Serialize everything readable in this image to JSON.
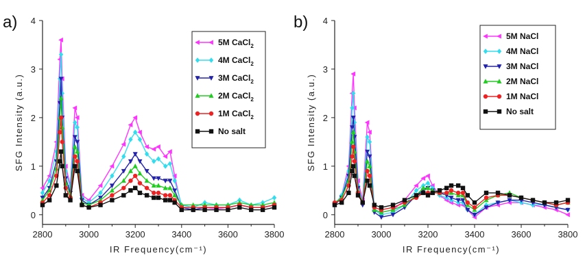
{
  "figure": {
    "panels": [
      "a)",
      "b)"
    ]
  },
  "chart_data": [
    {
      "type": "line",
      "panel_label": "a)",
      "xlabel": "IR Frequency(cm⁻¹)",
      "ylabel": "SFG Intensity (a.u.)",
      "xlim": [
        2800,
        3800
      ],
      "ylim": [
        -0.2,
        4
      ],
      "xticks": [
        2800,
        3000,
        3200,
        3400,
        3600,
        3800
      ],
      "yticks": [
        0,
        1,
        2,
        3,
        4
      ],
      "grid": false,
      "legend_position": "top-right",
      "x": [
        2800,
        2830,
        2860,
        2875,
        2880,
        2885,
        2900,
        2920,
        2940,
        2950,
        2970,
        3000,
        3050,
        3100,
        3150,
        3180,
        3200,
        3220,
        3250,
        3280,
        3300,
        3330,
        3350,
        3370,
        3400,
        3450,
        3500,
        3550,
        3600,
        3650,
        3700,
        3750,
        3800
      ],
      "series": [
        {
          "name": "5M CaCl2",
          "name_main": "5M CaCl",
          "name_sub": "2",
          "color": "#ff33ff",
          "marker": "triangle-left",
          "values": [
            0.55,
            0.8,
            1.5,
            3.2,
            3.6,
            2.8,
            1.0,
            0.6,
            2.2,
            2.0,
            0.4,
            0.3,
            0.6,
            1.0,
            1.45,
            1.85,
            2.0,
            1.7,
            1.4,
            1.35,
            1.4,
            1.2,
            1.3,
            0.8,
            0.15,
            0.1,
            0.15,
            0.12,
            0.15,
            0.2,
            0.15,
            0.15,
            0.2
          ]
        },
        {
          "name": "4M CaCl2",
          "name_main": "4M CaCl",
          "name_sub": "2",
          "color": "#33ddee",
          "marker": "diamond",
          "values": [
            0.45,
            0.7,
            1.3,
            2.8,
            3.3,
            2.5,
            0.9,
            0.55,
            1.9,
            1.8,
            0.35,
            0.25,
            0.45,
            0.8,
            1.2,
            1.55,
            1.7,
            1.55,
            1.25,
            1.1,
            1.15,
            1.0,
            1.05,
            0.7,
            0.2,
            0.15,
            0.25,
            0.2,
            0.2,
            0.3,
            0.2,
            0.25,
            0.35
          ]
        },
        {
          "name": "3M CaCl2",
          "name_main": "3M CaCl",
          "name_sub": "2",
          "color": "#2222aa",
          "marker": "triangle-down",
          "values": [
            0.35,
            0.55,
            1.1,
            2.3,
            2.8,
            2.0,
            0.75,
            0.45,
            1.6,
            1.5,
            0.3,
            0.2,
            0.35,
            0.6,
            0.9,
            1.1,
            1.25,
            1.1,
            0.9,
            0.75,
            0.75,
            0.7,
            0.7,
            0.5,
            0.15,
            0.1,
            0.15,
            0.15,
            0.15,
            0.2,
            0.15,
            0.15,
            0.2
          ]
        },
        {
          "name": "2M CaCl2",
          "name_main": "2M CaCl",
          "name_sub": "2",
          "color": "#22cc22",
          "marker": "triangle-up",
          "values": [
            0.3,
            0.5,
            0.95,
            2.0,
            2.4,
            1.8,
            0.65,
            0.4,
            1.4,
            1.3,
            0.25,
            0.2,
            0.3,
            0.5,
            0.7,
            0.9,
            1.0,
            0.85,
            0.7,
            0.6,
            0.6,
            0.55,
            0.55,
            0.4,
            0.2,
            0.2,
            0.2,
            0.2,
            0.2,
            0.25,
            0.2,
            0.2,
            0.25
          ]
        },
        {
          "name": "1M CaCl2",
          "name_main": "1M CaCl",
          "name_sub": "2",
          "color": "#ee2222",
          "marker": "circle",
          "values": [
            0.25,
            0.4,
            0.8,
            1.7,
            2.0,
            1.5,
            0.55,
            0.35,
            1.2,
            1.1,
            0.2,
            0.15,
            0.25,
            0.4,
            0.55,
            0.7,
            0.8,
            0.65,
            0.55,
            0.45,
            0.45,
            0.4,
            0.4,
            0.3,
            0.15,
            0.15,
            0.15,
            0.15,
            0.15,
            0.2,
            0.15,
            0.15,
            0.2
          ]
        },
        {
          "name": "No salt",
          "name_main": "No salt",
          "name_sub": "",
          "color": "#111111",
          "marker": "square",
          "values": [
            0.2,
            0.3,
            0.6,
            1.1,
            1.3,
            1.0,
            0.4,
            0.3,
            1.0,
            0.9,
            0.2,
            0.15,
            0.2,
            0.3,
            0.4,
            0.5,
            0.55,
            0.45,
            0.4,
            0.35,
            0.35,
            0.3,
            0.3,
            0.25,
            0.1,
            0.1,
            0.1,
            0.1,
            0.1,
            0.15,
            0.1,
            0.1,
            0.15
          ]
        }
      ]
    },
    {
      "type": "line",
      "panel_label": "b)",
      "xlabel": "IR Frequency(cm⁻¹)",
      "ylabel": "SFG Intensity (a.u.)",
      "xlim": [
        2800,
        3800
      ],
      "ylim": [
        -0.2,
        4
      ],
      "xticks": [
        2800,
        3000,
        3200,
        3400,
        3600,
        3800
      ],
      "yticks": [
        0,
        1,
        2,
        3,
        4
      ],
      "grid": false,
      "legend_position": "top-right",
      "x": [
        2800,
        2830,
        2860,
        2875,
        2880,
        2885,
        2900,
        2920,
        2940,
        2950,
        2970,
        3000,
        3050,
        3100,
        3150,
        3180,
        3200,
        3220,
        3250,
        3280,
        3300,
        3330,
        3350,
        3370,
        3400,
        3450,
        3500,
        3550,
        3600,
        3650,
        3700,
        3750,
        3800
      ],
      "series": [
        {
          "name": "5M NaCl",
          "name_main": "5M NaCl",
          "name_sub": "",
          "color": "#ff33ff",
          "marker": "triangle-left",
          "values": [
            0.2,
            0.4,
            1.0,
            2.5,
            2.9,
            2.2,
            0.7,
            0.3,
            1.9,
            1.7,
            0.1,
            0.05,
            0.1,
            0.3,
            0.6,
            0.75,
            0.8,
            0.6,
            0.4,
            0.3,
            0.25,
            0.2,
            0.2,
            0.1,
            -0.05,
            0.15,
            0.2,
            0.25,
            0.25,
            0.2,
            0.15,
            0.1,
            0.0
          ]
        },
        {
          "name": "4M NaCl",
          "name_main": "4M NaCl",
          "name_sub": "",
          "color": "#33ddee",
          "marker": "diamond",
          "values": [
            0.2,
            0.4,
            0.9,
            2.2,
            2.5,
            1.9,
            0.6,
            0.25,
            1.6,
            1.5,
            0.1,
            0.0,
            0.05,
            0.2,
            0.5,
            0.6,
            0.65,
            0.55,
            0.4,
            0.35,
            0.3,
            0.25,
            0.25,
            0.1,
            0.0,
            0.2,
            0.25,
            0.3,
            0.25,
            0.2,
            0.2,
            0.15,
            0.1
          ]
        },
        {
          "name": "3M NaCl",
          "name_main": "3M NaCl",
          "name_sub": "",
          "color": "#2222aa",
          "marker": "triangle-down",
          "values": [
            0.2,
            0.35,
            0.8,
            1.8,
            2.0,
            1.6,
            0.55,
            0.2,
            1.3,
            1.2,
            0.05,
            -0.05,
            0.0,
            0.15,
            0.4,
            0.5,
            0.55,
            0.5,
            0.45,
            0.4,
            0.35,
            0.3,
            0.3,
            0.1,
            0.0,
            0.15,
            0.25,
            0.3,
            0.3,
            0.25,
            0.2,
            0.15,
            0.1
          ]
        },
        {
          "name": "2M NaCl",
          "name_main": "2M NaCl",
          "name_sub": "",
          "color": "#22cc22",
          "marker": "triangle-up",
          "values": [
            0.25,
            0.35,
            0.7,
            1.5,
            1.7,
            1.3,
            0.5,
            0.25,
            1.1,
            1.0,
            0.1,
            0.05,
            0.1,
            0.2,
            0.4,
            0.55,
            0.55,
            0.5,
            0.45,
            0.45,
            0.45,
            0.4,
            0.4,
            0.2,
            0.1,
            0.3,
            0.4,
            0.45,
            0.35,
            0.3,
            0.25,
            0.2,
            0.25
          ]
        },
        {
          "name": "1M NaCl",
          "name_main": "1M NaCl",
          "name_sub": "",
          "color": "#ee2222",
          "marker": "circle",
          "values": [
            0.25,
            0.3,
            0.6,
            1.2,
            1.4,
            1.1,
            0.45,
            0.25,
            0.9,
            0.8,
            0.15,
            0.1,
            0.15,
            0.25,
            0.35,
            0.45,
            0.45,
            0.45,
            0.45,
            0.45,
            0.5,
            0.45,
            0.45,
            0.25,
            0.15,
            0.35,
            0.4,
            0.4,
            0.35,
            0.3,
            0.25,
            0.2,
            0.25
          ]
        },
        {
          "name": "No salt",
          "name_main": "No salt",
          "name_sub": "",
          "color": "#111111",
          "marker": "square",
          "values": [
            0.2,
            0.25,
            0.45,
            0.9,
            1.0,
            0.8,
            0.4,
            0.25,
            0.7,
            0.6,
            0.2,
            0.15,
            0.2,
            0.3,
            0.4,
            0.45,
            0.4,
            0.45,
            0.5,
            0.55,
            0.6,
            0.6,
            0.55,
            0.4,
            0.25,
            0.45,
            0.45,
            0.4,
            0.35,
            0.3,
            0.25,
            0.25,
            0.3
          ]
        }
      ]
    }
  ]
}
